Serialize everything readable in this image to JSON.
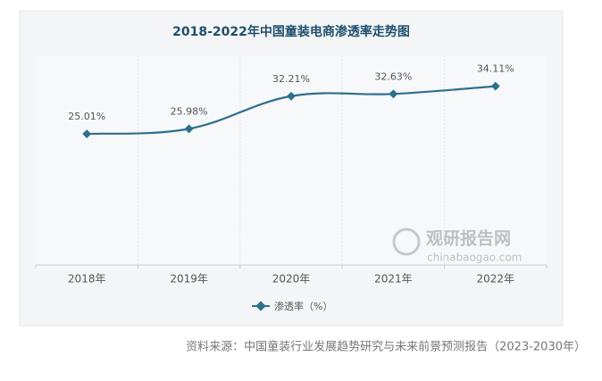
{
  "chart_data": {
    "type": "line",
    "title": "2018-2022年中国童装电商渗透率走势图",
    "categories": [
      "2018年",
      "2019年",
      "2020年",
      "2021年",
      "2022年"
    ],
    "series": [
      {
        "name": "渗透率（%）",
        "color": "#2e6f8e",
        "values": [
          25.01,
          25.98,
          32.21,
          32.63,
          34.11
        ],
        "value_labels": [
          "25.01%",
          "25.98%",
          "32.21%",
          "32.63%",
          "34.11%"
        ]
      }
    ],
    "ylim": [
      0,
      40
    ],
    "watermark": {
      "brand": "观研报告网",
      "site": "chinabaogao.com"
    },
    "source": "资料来源：中国童装行业发展趋势研究与未来前景预测报告（2023-2030年）"
  }
}
